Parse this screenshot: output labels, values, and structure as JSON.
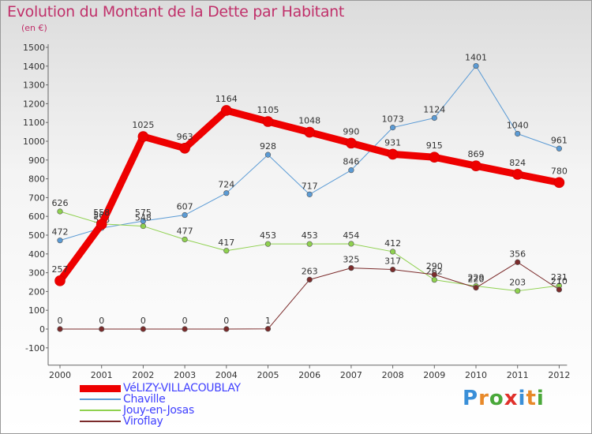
{
  "title": "Evolution du Montant de la Dette par Habitant",
  "unit": "(en €)",
  "logo": [
    "P",
    "r",
    "o",
    "x",
    "i",
    "t",
    "i"
  ],
  "logo_colors": [
    "#3a8fd8",
    "#e8892a",
    "#4aa83a",
    "#e0302a",
    "#3a8fd8",
    "#e8892a",
    "#4aa83a"
  ],
  "chart_data": {
    "type": "line",
    "x": [
      "2000",
      "2001",
      "2002",
      "2003",
      "2004",
      "2005",
      "2006",
      "2007",
      "2008",
      "2009",
      "2010",
      "2011",
      "2012"
    ],
    "ylim": [
      -100,
      1500
    ],
    "yticks": [
      "-100",
      "0",
      "100",
      "200",
      "300",
      "400",
      "500",
      "600",
      "700",
      "800",
      "900",
      "1000",
      "1100",
      "1200",
      "1300",
      "1400",
      "1500"
    ],
    "grid": false,
    "legend_position": "bottom-left",
    "series": [
      {
        "name": "VéLIZY-VILLACOUBLAY",
        "color": "#ee0000",
        "width": 9,
        "values": [
          257,
          558,
          1025,
          963,
          1164,
          1105,
          1048,
          990,
          931,
          915,
          869,
          824,
          780
        ],
        "labels": [
          "257",
          "558",
          "1025",
          "963",
          "1164",
          "1105",
          "1048",
          "990",
          "931",
          "915",
          "869",
          "824",
          "780"
        ]
      },
      {
        "name": "Chaville",
        "color": "#5b9bd5",
        "width": 1,
        "values": [
          472,
          538,
          575,
          607,
          724,
          928,
          717,
          846,
          1073,
          1124,
          1401,
          1040,
          961
        ],
        "labels": [
          "472",
          "538",
          "575",
          "607",
          "724",
          "928",
          "717",
          "846",
          "1073",
          "1124",
          "1401",
          "1040",
          "961"
        ]
      },
      {
        "name": "Jouy-en-Josas",
        "color": "#8fd14f",
        "width": 1,
        "values": [
          626,
          560,
          548,
          477,
          417,
          453,
          453,
          454,
          412,
          262,
          229,
          203,
          231
        ],
        "labels": [
          "626",
          "560",
          "548",
          "477",
          "417",
          "453",
          "453",
          "454",
          "412",
          "262",
          "229",
          "203",
          "231"
        ]
      },
      {
        "name": "Viroflay",
        "color": "#7b2b2b",
        "width": 1,
        "values": [
          0,
          0,
          0,
          0,
          0,
          1,
          263,
          325,
          317,
          290,
          220,
          356,
          210
        ],
        "labels": [
          "0",
          "0",
          "0",
          "0",
          "0",
          "1",
          "263",
          "325",
          "317",
          "290",
          "220",
          "356",
          "210"
        ]
      }
    ]
  }
}
